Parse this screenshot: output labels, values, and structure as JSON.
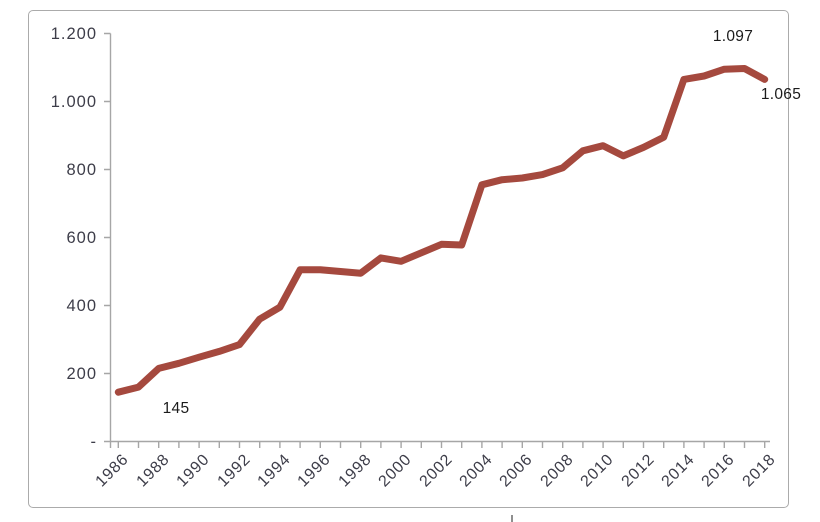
{
  "chart": {
    "colors": {
      "line": "#a5493e",
      "axis": "#a6a6a6",
      "frame_border": "#ababab",
      "tick_label": "#3d3d49",
      "data_label": "#1b1b1b"
    },
    "y_axis": {
      "tick_labels": [
        "1.200",
        "1.000",
        "800",
        "600",
        "400",
        "200",
        "-"
      ],
      "tick_values": [
        1200,
        1000,
        800,
        600,
        400,
        200,
        0
      ]
    },
    "x_axis": {
      "label_years": [
        1986,
        1988,
        1990,
        1992,
        1994,
        1996,
        1998,
        2000,
        2002,
        2004,
        2006,
        2008,
        2010,
        2012,
        2014,
        2016,
        2018
      ]
    },
    "annotations": {
      "first": "145",
      "peak": "1.097",
      "last": "1.065"
    }
  },
  "chart_data": {
    "type": "line",
    "title": "",
    "xlabel": "",
    "ylabel": "",
    "x": [
      1986,
      1987,
      1988,
      1989,
      1990,
      1991,
      1992,
      1993,
      1994,
      1995,
      1996,
      1997,
      1998,
      1999,
      2000,
      2001,
      2002,
      2003,
      2004,
      2005,
      2006,
      2007,
      2008,
      2009,
      2010,
      2011,
      2012,
      2013,
      2014,
      2015,
      2016,
      2017,
      2018
    ],
    "values": [
      145,
      160,
      215,
      230,
      248,
      265,
      285,
      360,
      395,
      505,
      505,
      500,
      495,
      540,
      530,
      555,
      580,
      578,
      755,
      770,
      775,
      785,
      805,
      855,
      870,
      840,
      865,
      895,
      1065,
      1075,
      1095,
      1097,
      1065
    ],
    "ylim": [
      0,
      1200
    ],
    "y_tick_interval": 200,
    "grid": false,
    "legend": "none",
    "number_format": "dot-thousands",
    "labeled_points": [
      {
        "x": 1986,
        "label": "145"
      },
      {
        "x": 2017,
        "label": "1.097"
      },
      {
        "x": 2018,
        "label": "1.065"
      }
    ]
  }
}
